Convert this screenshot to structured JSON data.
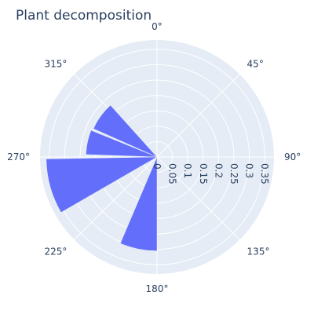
{
  "chart_data": {
    "type": "barpolar",
    "title": "Plant decomposition",
    "angular_axis": {
      "direction": "clockwise",
      "rotation": 90,
      "tick_labels": [
        "0°",
        "45°",
        "90°",
        "135°",
        "180°",
        "225°",
        "270°",
        "315°"
      ]
    },
    "radial_axis": {
      "range": [
        0,
        0.38
      ],
      "tick_labels": [
        "0",
        "0.05",
        "0.1",
        "0.15",
        "0.2",
        "0.25",
        "0.3",
        "0.35"
      ],
      "tick_values": [
        0,
        0.05,
        0.1,
        0.15,
        0.2,
        0.25,
        0.3,
        0.35
      ],
      "angle_deg": 90
    },
    "series": [
      {
        "bars": [
          {
            "theta_start": 180,
            "theta_end": 203,
            "r": 0.305
          },
          {
            "theta_start": 240,
            "theta_end": 269,
            "r": 0.36
          },
          {
            "theta_start": 272,
            "theta_end": 292,
            "r": 0.231
          },
          {
            "theta_start": 294,
            "theta_end": 318,
            "r": 0.226
          }
        ]
      }
    ],
    "colors": {
      "bar": "#636efa",
      "background": "#e5ecf6",
      "grid": "#ffffff",
      "text": "#2a3f5f"
    }
  }
}
